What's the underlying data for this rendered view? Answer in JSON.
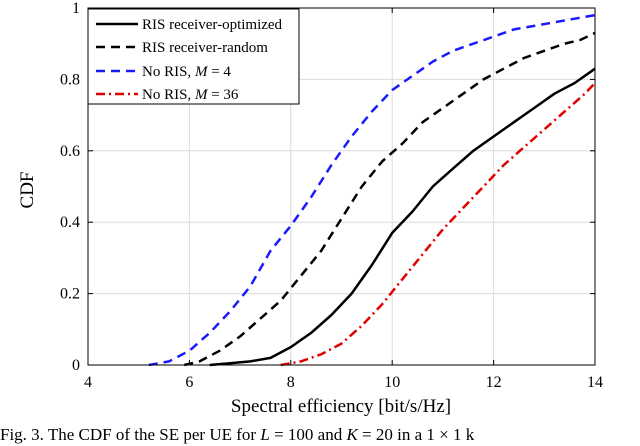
{
  "chart_data": {
    "type": "line",
    "title": "",
    "xlabel": "Spectral efficiency [bit/s/Hz]",
    "ylabel": "CDF",
    "xlim": [
      4,
      14
    ],
    "ylim": [
      0,
      1
    ],
    "xticks": [
      4,
      6,
      8,
      10,
      12,
      14
    ],
    "yticks": [
      0,
      0.2,
      0.4,
      0.6,
      0.8,
      1
    ],
    "xtick_labels": [
      "4",
      "6",
      "8",
      "10",
      "12",
      "14"
    ],
    "ytick_labels": [
      "0",
      "0.2",
      "0.4",
      "0.6",
      "0.8",
      "1"
    ],
    "grid": true,
    "legend_position": "top-left",
    "series": [
      {
        "name": "RIS receiver-optimized",
        "color": "#000000",
        "style": "solid",
        "points": [
          [
            6.4,
            0
          ],
          [
            6.8,
            0.005
          ],
          [
            7.2,
            0.01
          ],
          [
            7.6,
            0.02
          ],
          [
            8.0,
            0.05
          ],
          [
            8.4,
            0.09
          ],
          [
            8.8,
            0.14
          ],
          [
            9.2,
            0.2
          ],
          [
            9.6,
            0.28
          ],
          [
            10.0,
            0.37
          ],
          [
            10.4,
            0.43
          ],
          [
            10.8,
            0.5
          ],
          [
            11.2,
            0.55
          ],
          [
            11.6,
            0.6
          ],
          [
            12.0,
            0.64
          ],
          [
            12.4,
            0.68
          ],
          [
            12.8,
            0.72
          ],
          [
            13.2,
            0.76
          ],
          [
            13.6,
            0.79
          ],
          [
            14.0,
            0.83
          ]
        ]
      },
      {
        "name": "RIS receiver-random",
        "color": "#000000",
        "style": "dashed",
        "points": [
          [
            5.9,
            0
          ],
          [
            6.2,
            0.01
          ],
          [
            6.6,
            0.04
          ],
          [
            7.0,
            0.08
          ],
          [
            7.4,
            0.13
          ],
          [
            7.8,
            0.18
          ],
          [
            8.2,
            0.25
          ],
          [
            8.6,
            0.32
          ],
          [
            9.0,
            0.41
          ],
          [
            9.4,
            0.5
          ],
          [
            9.8,
            0.57
          ],
          [
            10.2,
            0.62
          ],
          [
            10.6,
            0.68
          ],
          [
            11.0,
            0.72
          ],
          [
            11.4,
            0.76
          ],
          [
            11.8,
            0.8
          ],
          [
            12.2,
            0.83
          ],
          [
            12.6,
            0.86
          ],
          [
            13.0,
            0.88
          ],
          [
            13.4,
            0.9
          ],
          [
            13.7,
            0.91
          ],
          [
            14.0,
            0.93
          ]
        ]
      },
      {
        "name": "No RIS, M = 4",
        "color": "#1a1aff",
        "style": "dashed",
        "points": [
          [
            5.2,
            0
          ],
          [
            5.6,
            0.01
          ],
          [
            6.0,
            0.04
          ],
          [
            6.4,
            0.09
          ],
          [
            6.8,
            0.15
          ],
          [
            7.2,
            0.22
          ],
          [
            7.6,
            0.32
          ],
          [
            8.0,
            0.39
          ],
          [
            8.4,
            0.47
          ],
          [
            8.8,
            0.56
          ],
          [
            9.2,
            0.64
          ],
          [
            9.6,
            0.71
          ],
          [
            10.0,
            0.77
          ],
          [
            10.4,
            0.81
          ],
          [
            10.8,
            0.85
          ],
          [
            11.2,
            0.88
          ],
          [
            11.6,
            0.9
          ],
          [
            12.0,
            0.92
          ],
          [
            12.4,
            0.94
          ],
          [
            12.8,
            0.95
          ],
          [
            13.2,
            0.96
          ],
          [
            13.6,
            0.97
          ],
          [
            14.0,
            0.98
          ]
        ]
      },
      {
        "name": "No RIS, M = 36",
        "color": "#e00000",
        "style": "dashdot",
        "points": [
          [
            7.8,
            0
          ],
          [
            8.2,
            0.01
          ],
          [
            8.6,
            0.03
          ],
          [
            9.0,
            0.06
          ],
          [
            9.4,
            0.11
          ],
          [
            9.8,
            0.17
          ],
          [
            10.2,
            0.24
          ],
          [
            10.6,
            0.31
          ],
          [
            11.0,
            0.38
          ],
          [
            11.4,
            0.44
          ],
          [
            11.8,
            0.5
          ],
          [
            12.2,
            0.56
          ],
          [
            12.6,
            0.61
          ],
          [
            13.0,
            0.66
          ],
          [
            13.4,
            0.71
          ],
          [
            13.8,
            0.76
          ],
          [
            14.0,
            0.79
          ]
        ]
      }
    ]
  },
  "legend": [
    {
      "text": "RIS receiver-optimized",
      "var": "",
      "rest": ""
    },
    {
      "text": "RIS receiver-random",
      "var": "",
      "rest": ""
    },
    {
      "text": "No RIS, ",
      "var": "M",
      "rest": " = 4"
    },
    {
      "text": "No RIS, ",
      "var": "M",
      "rest": " = 36"
    }
  ],
  "caption": {
    "prefix": "Fig. 3.  The CDF of the SE per UE for ",
    "var1": "L",
    "mid1": " = 100 and ",
    "var2": "K",
    "mid2": " = 20 in a 1 × 1 k"
  }
}
